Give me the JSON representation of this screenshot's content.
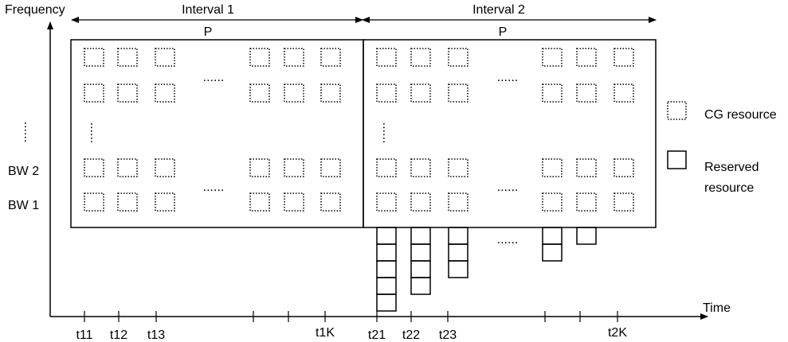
{
  "axes": {
    "y_label": "Frequency",
    "x_label": "Time",
    "bw_labels": [
      "BW 2",
      "BW 1"
    ],
    "y_ellipsis": "......"
  },
  "intervals": [
    {
      "label": "Interval 1",
      "period_label": "P"
    },
    {
      "label": "Interval 2",
      "period_label": "P"
    }
  ],
  "time_labels": {
    "interval1": [
      "t11",
      "t12",
      "t13",
      "t1K"
    ],
    "interval2": [
      "t21",
      "t22",
      "t23",
      "t2K"
    ]
  },
  "ellipsis": "......",
  "legend": {
    "cg": {
      "label": "CG resource",
      "icon": "dotted-square-icon"
    },
    "reserved": {
      "label_line1": "Reserved",
      "label_line2": "resource",
      "icon": "solid-square-icon"
    }
  },
  "reserved_stack_heights": [
    5,
    4,
    3,
    2,
    1
  ]
}
